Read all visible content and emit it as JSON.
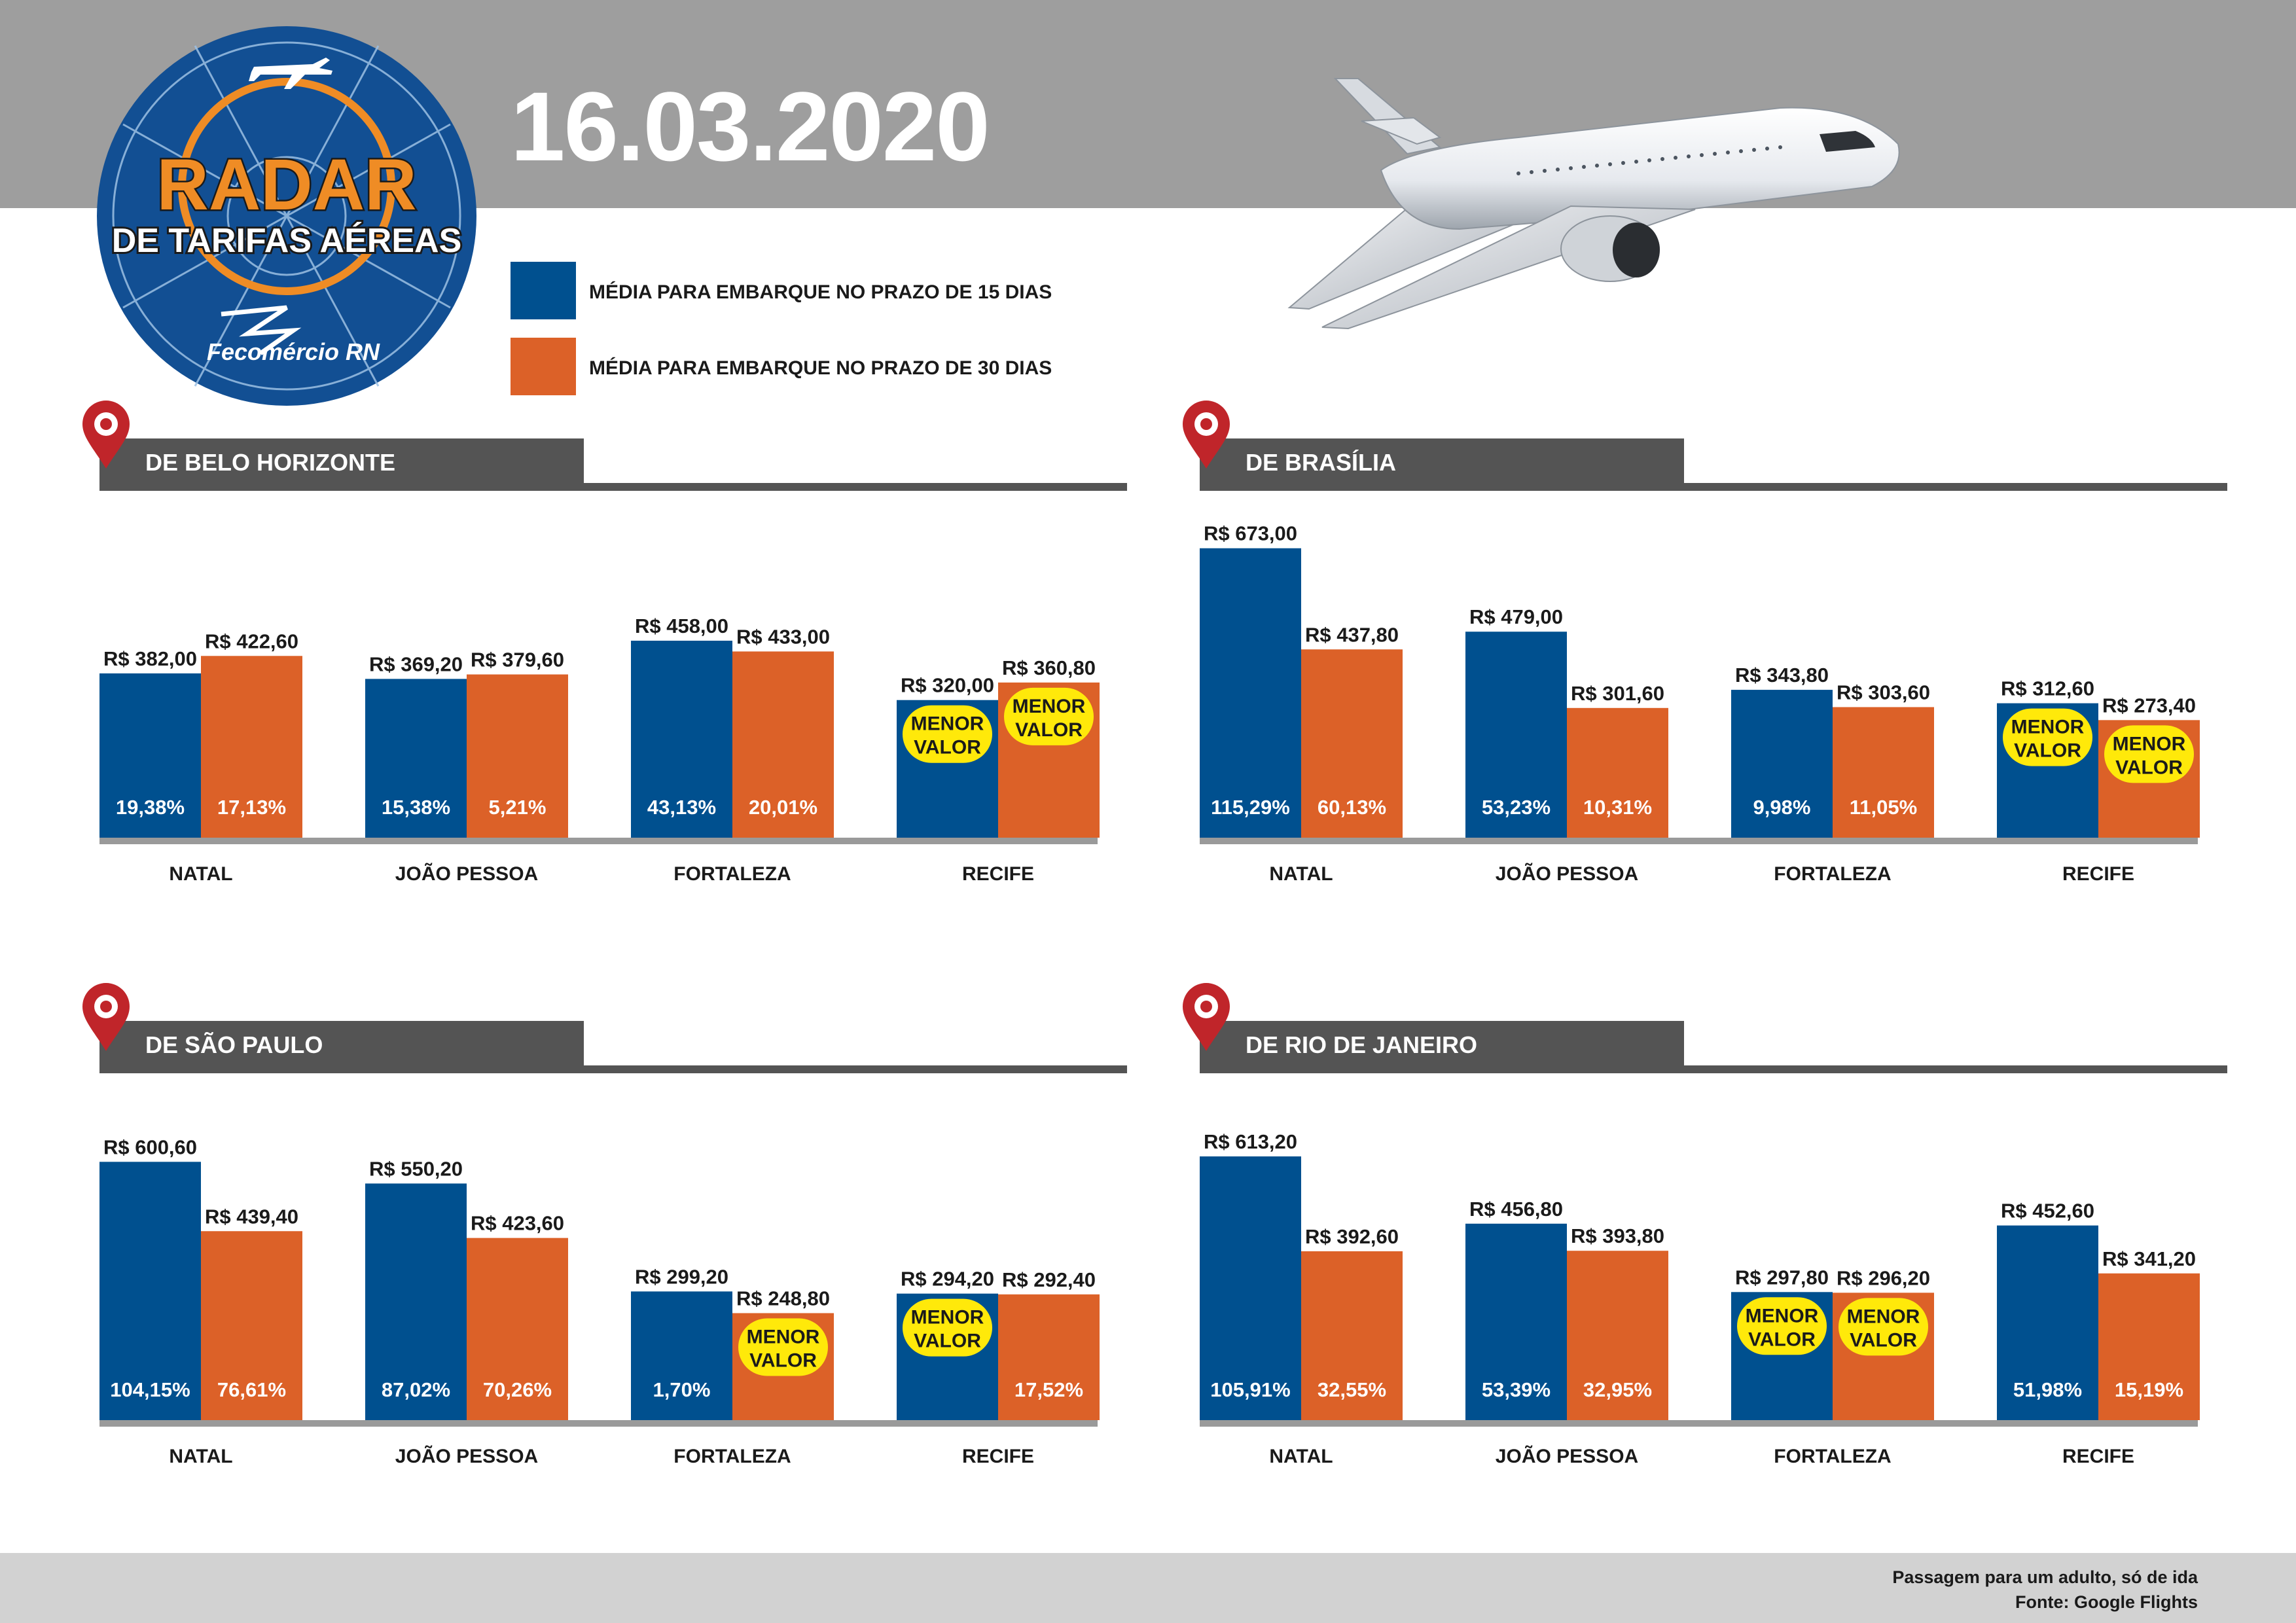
{
  "header": {
    "date": "16.03.2020",
    "logo_title": "RADAR",
    "logo_subtitle": "DE TARIFAS AÉREAS",
    "logo_brand": "Fecomércio RN"
  },
  "colors": {
    "blue": "#00508f",
    "orange": "#dc6128",
    "badge": "#ffe90a",
    "pin": "#c0252a",
    "panel": "#545454"
  },
  "legend": [
    {
      "label": "MÉDIA PARA EMBARQUE NO PRAZO DE 15 DIAS",
      "color": "#00508f"
    },
    {
      "label": "MÉDIA PARA EMBARQUE NO PRAZO DE 30 DIAS",
      "color": "#dc6128"
    }
  ],
  "badge_text": [
    "MENOR",
    "VALOR"
  ],
  "chart_data": [
    {
      "type": "bar",
      "title": "DE BELO HORIZONTE",
      "categories": [
        "NATAL",
        "JOÃO PESSOA",
        "FORTALEZA",
        "RECIFE"
      ],
      "series": [
        {
          "name": "MÉDIA PARA EMBARQUE NO PRAZO DE 15 DIAS",
          "values": [
            382.0,
            369.2,
            458.0,
            320.0
          ],
          "value_labels": [
            "R$ 382,00",
            "R$ 369,20",
            "R$ 458,00",
            "R$ 320,00"
          ],
          "pct_labels": [
            "19,38%",
            "15,38%",
            "43,13%",
            ""
          ],
          "lowest": [
            false,
            false,
            false,
            true
          ]
        },
        {
          "name": "MÉDIA PARA EMBARQUE NO PRAZO DE 30 DIAS",
          "values": [
            422.6,
            379.6,
            433.0,
            360.8
          ],
          "value_labels": [
            "R$ 422,60",
            "R$ 379,60",
            "R$ 433,00",
            "R$ 360,80"
          ],
          "pct_labels": [
            "17,13%",
            "5,21%",
            "20,01%",
            ""
          ],
          "lowest": [
            false,
            false,
            false,
            true
          ]
        }
      ],
      "ylim": [
        0,
        700
      ]
    },
    {
      "type": "bar",
      "title": "DE BRASÍLIA",
      "categories": [
        "NATAL",
        "JOÃO PESSOA",
        "FORTALEZA",
        "RECIFE"
      ],
      "series": [
        {
          "name": "MÉDIA PARA EMBARQUE NO PRAZO DE 15 DIAS",
          "values": [
            673.0,
            479.0,
            343.8,
            312.6
          ],
          "value_labels": [
            "R$ 673,00",
            "R$ 479,00",
            "R$ 343,80",
            "R$ 312,60"
          ],
          "pct_labels": [
            "115,29%",
            "53,23%",
            "9,98%",
            ""
          ],
          "lowest": [
            false,
            false,
            false,
            true
          ]
        },
        {
          "name": "MÉDIA PARA EMBARQUE NO PRAZO DE 30 DIAS",
          "values": [
            437.8,
            301.6,
            303.6,
            273.4
          ],
          "value_labels": [
            "R$ 437,80",
            "R$ 301,60",
            "R$ 303,60",
            "R$ 273,40"
          ],
          "pct_labels": [
            "60,13%",
            "10,31%",
            "11,05%",
            ""
          ],
          "lowest": [
            false,
            false,
            false,
            true
          ]
        }
      ],
      "ylim": [
        0,
        700
      ]
    },
    {
      "type": "bar",
      "title": "DE SÃO PAULO",
      "categories": [
        "NATAL",
        "JOÃO PESSOA",
        "FORTALEZA",
        "RECIFE"
      ],
      "series": [
        {
          "name": "MÉDIA PARA EMBARQUE NO PRAZO DE 15 DIAS",
          "values": [
            600.6,
            550.2,
            299.2,
            294.2
          ],
          "value_labels": [
            "R$ 600,60",
            "R$ 550,20",
            "R$ 299,20",
            "R$ 294,20"
          ],
          "pct_labels": [
            "104,15%",
            "87,02%",
            "1,70%",
            ""
          ],
          "lowest": [
            false,
            false,
            false,
            true
          ]
        },
        {
          "name": "MÉDIA PARA EMBARQUE NO PRAZO DE 30 DIAS",
          "values": [
            439.4,
            423.6,
            248.8,
            292.4
          ],
          "value_labels": [
            "R$ 439,40",
            "R$ 423,60",
            "R$ 248,80",
            "R$ 292,40"
          ],
          "pct_labels": [
            "76,61%",
            "70,26%",
            "",
            "17,52%"
          ],
          "lowest": [
            false,
            false,
            true,
            false
          ]
        }
      ],
      "ylim": [
        0,
        700
      ]
    },
    {
      "type": "bar",
      "title": "DE RIO DE JANEIRO",
      "categories": [
        "NATAL",
        "JOÃO PESSOA",
        "FORTALEZA",
        "RECIFE"
      ],
      "series": [
        {
          "name": "MÉDIA PARA EMBARQUE NO PRAZO DE 15 DIAS",
          "values": [
            613.2,
            456.8,
            297.8,
            452.6
          ],
          "value_labels": [
            "R$ 613,20",
            "R$ 456,80",
            "R$ 297,80",
            "R$ 452,60"
          ],
          "pct_labels": [
            "105,91%",
            "53,39%",
            "",
            "51,98%"
          ],
          "lowest": [
            false,
            false,
            true,
            false
          ]
        },
        {
          "name": "MÉDIA PARA EMBARQUE NO PRAZO DE 30 DIAS",
          "values": [
            392.6,
            393.8,
            296.2,
            341.2
          ],
          "value_labels": [
            "R$ 392,60",
            "R$ 393,80",
            "R$ 296,20",
            "R$ 341,20"
          ],
          "pct_labels": [
            "32,55%",
            "32,95%",
            "",
            "15,19%"
          ],
          "lowest": [
            false,
            false,
            true,
            false
          ]
        }
      ],
      "ylim": [
        0,
        700
      ]
    }
  ],
  "footer": {
    "note": "Passagem para um adulto, só de ida",
    "source": "Fonte: Google Flights"
  }
}
